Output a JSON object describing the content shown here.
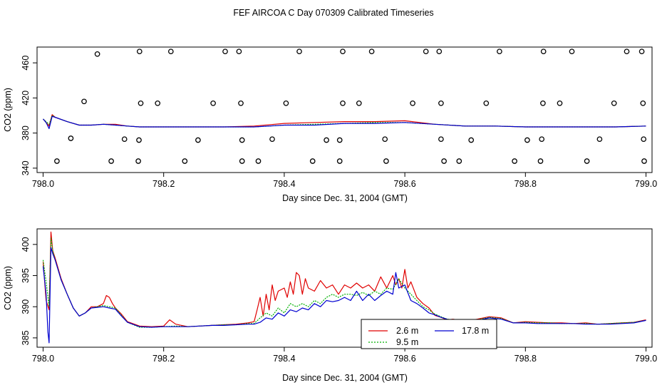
{
  "figure_title": "FEF AIRCOA C  Day 070309  Calibrated Timeseries",
  "colors": {
    "s1": "#e00000",
    "s2": "#00b000",
    "s3": "#0000d0",
    "axis": "#000000"
  },
  "chart_data": [
    {
      "type": "scatter+line",
      "xlabel": "Day since Dec. 31, 2004 (GMT)",
      "ylabel": "CO2 (ppm)",
      "xlim": [
        797.99,
        799.01
      ],
      "ylim": [
        335,
        478
      ],
      "xticks": [
        798.0,
        798.2,
        798.4,
        798.6,
        798.8,
        799.0
      ],
      "xtick_labels": [
        "798.0",
        "798.2",
        "798.4",
        "798.6",
        "798.8",
        "799.0"
      ],
      "yticks": [
        340,
        380,
        420,
        460
      ],
      "ytick_labels": [
        "340",
        "380",
        "420",
        "460"
      ],
      "points": [
        [
          798.09,
          470
        ],
        [
          798.16,
          473
        ],
        [
          798.212,
          473
        ],
        [
          798.302,
          473
        ],
        [
          798.325,
          473
        ],
        [
          798.425,
          473
        ],
        [
          798.497,
          473
        ],
        [
          798.545,
          473
        ],
        [
          798.635,
          473
        ],
        [
          798.657,
          473
        ],
        [
          798.757,
          473
        ],
        [
          798.83,
          473
        ],
        [
          798.877,
          473
        ],
        [
          798.968,
          473
        ],
        [
          798.993,
          473
        ],
        [
          798.068,
          416
        ],
        [
          798.162,
          414
        ],
        [
          798.19,
          414
        ],
        [
          798.282,
          414
        ],
        [
          798.328,
          414
        ],
        [
          798.403,
          414
        ],
        [
          798.497,
          414
        ],
        [
          798.524,
          414
        ],
        [
          798.613,
          414
        ],
        [
          798.66,
          414
        ],
        [
          798.735,
          414
        ],
        [
          798.829,
          414
        ],
        [
          798.857,
          414
        ],
        [
          798.947,
          414
        ],
        [
          798.995,
          414
        ],
        [
          798.046,
          374
        ],
        [
          798.135,
          373
        ],
        [
          798.159,
          372
        ],
        [
          798.257,
          372
        ],
        [
          798.33,
          372
        ],
        [
          798.38,
          373
        ],
        [
          798.47,
          372
        ],
        [
          798.492,
          372
        ],
        [
          798.567,
          373
        ],
        [
          798.66,
          373
        ],
        [
          798.71,
          372
        ],
        [
          798.803,
          372
        ],
        [
          798.827,
          373
        ],
        [
          798.923,
          373
        ],
        [
          798.996,
          373
        ],
        [
          798.023,
          348
        ],
        [
          798.113,
          348
        ],
        [
          798.158,
          348
        ],
        [
          798.235,
          348
        ],
        [
          798.33,
          348
        ],
        [
          798.357,
          348
        ],
        [
          798.447,
          348
        ],
        [
          798.492,
          348
        ],
        [
          798.569,
          348
        ],
        [
          798.665,
          348
        ],
        [
          798.69,
          348
        ],
        [
          798.782,
          348
        ],
        [
          798.825,
          348
        ],
        [
          798.902,
          348
        ],
        [
          798.997,
          348
        ]
      ],
      "series": [
        {
          "name": "2.6 m",
          "style": "solid",
          "x": [
            798.0,
            798.005,
            798.01,
            798.015,
            798.02,
            798.04,
            798.06,
            798.08,
            798.1,
            798.12,
            798.14,
            798.16,
            798.18,
            798.2,
            798.25,
            798.3,
            798.35,
            798.4,
            798.45,
            798.5,
            798.55,
            798.6,
            798.65,
            798.7,
            798.75,
            798.8,
            798.85,
            798.9,
            798.95,
            799.0
          ],
          "y": [
            396,
            392,
            388,
            401,
            398,
            393,
            389,
            389,
            390,
            390,
            388,
            387,
            387,
            387,
            387,
            387,
            388,
            391,
            392,
            393,
            393,
            394,
            390,
            388,
            388,
            387,
            387,
            387,
            387,
            388
          ]
        },
        {
          "name": "9.5 m",
          "style": "dashed",
          "x": [
            798.0,
            798.005,
            798.01,
            798.015,
            798.02,
            798.04,
            798.06,
            798.08,
            798.1,
            798.12,
            798.14,
            798.16,
            798.18,
            798.2,
            798.25,
            798.3,
            798.35,
            798.4,
            798.45,
            798.5,
            798.55,
            798.6,
            798.65,
            798.7,
            798.75,
            798.8,
            798.85,
            798.9,
            798.95,
            799.0
          ],
          "y": [
            396,
            393,
            390,
            400,
            398,
            393,
            389,
            389,
            390,
            389,
            388,
            387,
            387,
            387,
            387,
            387,
            387,
            389,
            390,
            391,
            392,
            392,
            390,
            388,
            388,
            387,
            387,
            387,
            387,
            388
          ]
        },
        {
          "name": "17.8 m",
          "style": "solid",
          "x": [
            798.0,
            798.005,
            798.01,
            798.015,
            798.02,
            798.04,
            798.06,
            798.08,
            798.1,
            798.12,
            798.14,
            798.16,
            798.18,
            798.2,
            798.25,
            798.3,
            798.35,
            798.4,
            798.45,
            798.5,
            798.55,
            798.6,
            798.65,
            798.7,
            798.75,
            798.8,
            798.85,
            798.9,
            798.95,
            799.0
          ],
          "y": [
            396,
            392,
            385,
            399,
            398,
            393,
            389,
            389,
            390,
            389,
            388,
            387,
            387,
            387,
            387,
            387,
            387,
            389,
            389,
            391,
            391,
            392,
            390,
            388,
            388,
            387,
            387,
            387,
            387,
            388
          ]
        }
      ]
    },
    {
      "type": "line",
      "xlabel": "Day since Dec. 31, 2004 (GMT)",
      "ylabel": "CO2 (ppm)",
      "xlim": [
        797.99,
        799.01
      ],
      "ylim": [
        383.5,
        402.5
      ],
      "xticks": [
        798.0,
        798.2,
        798.4,
        798.6,
        798.8,
        799.0
      ],
      "xtick_labels": [
        "798.0",
        "798.2",
        "798.4",
        "798.6",
        "798.8",
        "799.0"
      ],
      "yticks": [
        385,
        390,
        395,
        400
      ],
      "ytick_labels": [
        "385",
        "390",
        "395",
        "400"
      ],
      "legend": [
        "2.6 m",
        "9.5 m",
        "17.8 m"
      ],
      "legend_position": "bottom-center",
      "series": [
        {
          "name": "2.6 m",
          "style": "solid",
          "x": [
            798.0,
            798.005,
            798.01,
            798.013,
            798.016,
            798.02,
            798.03,
            798.04,
            798.05,
            798.06,
            798.07,
            798.08,
            798.09,
            798.1,
            798.105,
            798.11,
            798.115,
            798.12,
            798.13,
            798.14,
            798.16,
            798.18,
            798.2,
            798.21,
            798.22,
            798.24,
            798.26,
            798.28,
            798.3,
            798.32,
            798.34,
            798.35,
            798.355,
            798.36,
            798.365,
            798.37,
            798.375,
            798.38,
            798.385,
            798.39,
            798.4,
            798.405,
            798.41,
            798.415,
            798.42,
            798.425,
            798.43,
            798.435,
            798.44,
            798.45,
            798.46,
            798.47,
            798.48,
            798.49,
            798.5,
            798.51,
            798.52,
            798.53,
            798.54,
            798.55,
            798.56,
            798.57,
            798.58,
            798.585,
            798.59,
            798.595,
            798.6,
            798.605,
            798.61,
            798.62,
            798.63,
            798.64,
            798.65,
            798.66,
            798.67,
            798.68,
            798.7,
            798.72,
            798.74,
            798.76,
            798.78,
            798.8,
            798.82,
            798.84,
            798.86,
            798.88,
            798.9,
            798.92,
            798.94,
            798.96,
            798.98,
            799.0
          ],
          "y": [
            397.2,
            391.0,
            389.5,
            402.0,
            399.0,
            397.8,
            394.5,
            392.0,
            389.8,
            388.5,
            389.0,
            390.0,
            390.0,
            390.5,
            391.8,
            391.5,
            390.5,
            389.8,
            388.8,
            387.6,
            386.9,
            386.8,
            386.9,
            387.9,
            387.2,
            386.8,
            386.9,
            387.0,
            387.1,
            387.2,
            387.4,
            387.6,
            389.5,
            391.5,
            388.5,
            392.0,
            389.5,
            393.5,
            391.0,
            392.5,
            393.0,
            391.5,
            394.0,
            392.0,
            395.5,
            395.0,
            392.0,
            394.5,
            393.0,
            392.5,
            394.2,
            393.0,
            393.5,
            392.0,
            393.5,
            393.0,
            393.8,
            393.0,
            393.5,
            392.5,
            394.8,
            393.0,
            395.0,
            393.5,
            394.5,
            393.0,
            396.0,
            393.0,
            394.0,
            391.5,
            390.5,
            389.8,
            388.6,
            388.3,
            387.9,
            388.0,
            387.7,
            388.0,
            388.4,
            388.2,
            387.4,
            387.6,
            387.5,
            387.4,
            387.4,
            387.3,
            387.4,
            387.2,
            387.3,
            387.4,
            387.5,
            387.9
          ]
        },
        {
          "name": "9.5 m",
          "style": "dashed",
          "x": [
            798.0,
            798.005,
            798.01,
            798.013,
            798.016,
            798.02,
            798.03,
            798.04,
            798.05,
            798.06,
            798.07,
            798.08,
            798.09,
            798.1,
            798.11,
            798.12,
            798.13,
            798.14,
            798.16,
            798.18,
            798.2,
            798.22,
            798.24,
            798.26,
            798.28,
            798.3,
            798.32,
            798.34,
            798.35,
            798.36,
            798.37,
            798.38,
            798.39,
            798.4,
            798.41,
            798.42,
            798.43,
            798.44,
            798.45,
            798.46,
            798.47,
            798.48,
            798.49,
            798.5,
            798.51,
            798.52,
            798.53,
            798.54,
            798.55,
            798.56,
            798.57,
            798.58,
            798.59,
            798.6,
            798.61,
            798.62,
            798.63,
            798.64,
            798.65,
            798.66,
            798.67,
            798.68,
            798.7,
            798.72,
            798.74,
            798.76,
            798.78,
            798.8,
            798.82,
            798.84,
            798.86,
            798.88,
            798.9,
            798.92,
            798.94,
            798.96,
            798.98,
            799.0
          ],
          "y": [
            397.5,
            394.0,
            390.0,
            401.0,
            399.0,
            397.5,
            394.3,
            392.0,
            389.8,
            388.5,
            389.0,
            389.8,
            390.0,
            390.2,
            390.0,
            389.8,
            388.6,
            387.5,
            386.7,
            386.7,
            386.8,
            386.9,
            386.8,
            386.9,
            387.0,
            387.1,
            387.1,
            387.3,
            387.3,
            388.2,
            389.0,
            388.5,
            389.8,
            389.0,
            390.5,
            390.0,
            390.5,
            390.0,
            391.0,
            390.5,
            391.5,
            392.0,
            391.5,
            392.0,
            392.0,
            391.8,
            392.3,
            391.8,
            392.5,
            392.0,
            393.0,
            392.8,
            394.5,
            393.0,
            392.0,
            391.0,
            390.0,
            389.5,
            388.8,
            388.4,
            388.0,
            387.9,
            387.7,
            387.9,
            388.3,
            388.1,
            387.4,
            387.5,
            387.4,
            387.4,
            387.3,
            387.3,
            387.3,
            387.2,
            387.3,
            387.4,
            387.5,
            387.8
          ]
        },
        {
          "name": "17.8 m",
          "style": "solid",
          "x": [
            798.0,
            798.005,
            798.008,
            798.01,
            798.013,
            798.016,
            798.02,
            798.03,
            798.04,
            798.05,
            798.06,
            798.07,
            798.08,
            798.09,
            798.1,
            798.11,
            798.12,
            798.13,
            798.14,
            798.16,
            798.18,
            798.2,
            798.22,
            798.24,
            798.26,
            798.28,
            798.3,
            798.32,
            798.34,
            798.35,
            798.36,
            798.37,
            798.38,
            798.39,
            798.4,
            798.41,
            798.42,
            798.43,
            798.44,
            798.45,
            798.46,
            798.47,
            798.48,
            798.49,
            798.5,
            798.51,
            798.52,
            798.53,
            798.54,
            798.55,
            798.56,
            798.57,
            798.58,
            798.585,
            798.59,
            798.6,
            798.61,
            798.62,
            798.63,
            798.64,
            798.65,
            798.66,
            798.67,
            798.68,
            798.7,
            798.72,
            798.74,
            798.76,
            798.78,
            798.8,
            798.82,
            798.84,
            798.86,
            798.88,
            798.9,
            798.92,
            798.94,
            798.96,
            798.98,
            799.0
          ],
          "y": [
            396.5,
            392.0,
            386.0,
            384.2,
            399.5,
            398.5,
            397.5,
            394.3,
            392.0,
            389.8,
            388.5,
            389.0,
            389.8,
            389.9,
            390.0,
            389.8,
            389.6,
            388.5,
            387.5,
            386.8,
            386.7,
            386.8,
            386.8,
            386.8,
            386.9,
            387.0,
            387.0,
            387.1,
            387.2,
            387.2,
            387.5,
            388.2,
            388.0,
            389.0,
            388.5,
            389.5,
            389.2,
            389.8,
            389.5,
            390.5,
            390.0,
            391.0,
            390.8,
            391.0,
            391.5,
            391.0,
            392.5,
            391.0,
            392.0,
            391.0,
            391.8,
            392.5,
            392.0,
            395.5,
            393.0,
            393.5,
            391.0,
            390.5,
            389.8,
            389.0,
            388.7,
            388.3,
            388.0,
            387.8,
            387.6,
            387.8,
            388.2,
            388.0,
            387.4,
            387.4,
            387.3,
            387.3,
            387.3,
            387.3,
            387.2,
            387.2,
            387.2,
            387.3,
            387.4,
            387.8
          ]
        }
      ]
    }
  ]
}
